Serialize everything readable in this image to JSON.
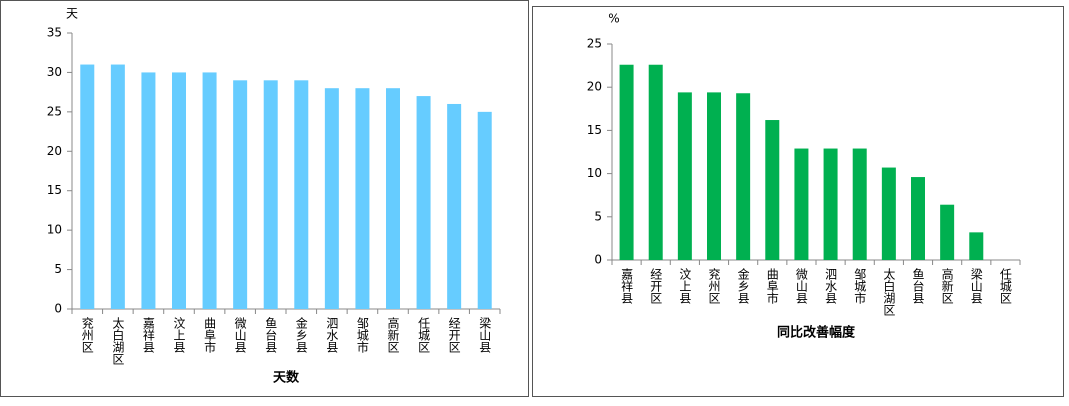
{
  "chart_data": [
    {
      "type": "bar",
      "unit": "天",
      "x_label": "天数",
      "color": "#66ccff",
      "categories": [
        "兖州区",
        "太白湖区",
        "嘉祥县",
        "汶上县",
        "曲阜市",
        "微山县",
        "鱼台县",
        "金乡县",
        "泗水县",
        "邹城市",
        "高新区",
        "任城区",
        "经开区",
        "梁山县"
      ],
      "values": [
        31,
        31,
        30,
        30,
        30,
        29,
        29,
        29,
        28,
        28,
        28,
        27,
        26,
        25
      ],
      "ylim": [
        0,
        35
      ],
      "yticks": [
        0,
        5,
        10,
        15,
        20,
        25,
        30,
        35
      ]
    },
    {
      "type": "bar",
      "unit": "%",
      "x_label": "同比改善幅度",
      "color": "#00b050",
      "categories": [
        "嘉祥县",
        "经开区",
        "汶上县",
        "兖州区",
        "金乡县",
        "曲阜市",
        "微山县",
        "泗水县",
        "邹城市",
        "太白湖区",
        "鱼台县",
        "高新区",
        "梁山县",
        "任城区"
      ],
      "values": [
        22.6,
        22.6,
        19.4,
        19.4,
        19.3,
        16.2,
        12.9,
        12.9,
        12.9,
        10.7,
        9.6,
        6.4,
        3.2,
        0
      ],
      "ylim": [
        0,
        25
      ],
      "yticks": [
        0,
        5,
        10,
        15,
        20,
        25
      ]
    }
  ]
}
